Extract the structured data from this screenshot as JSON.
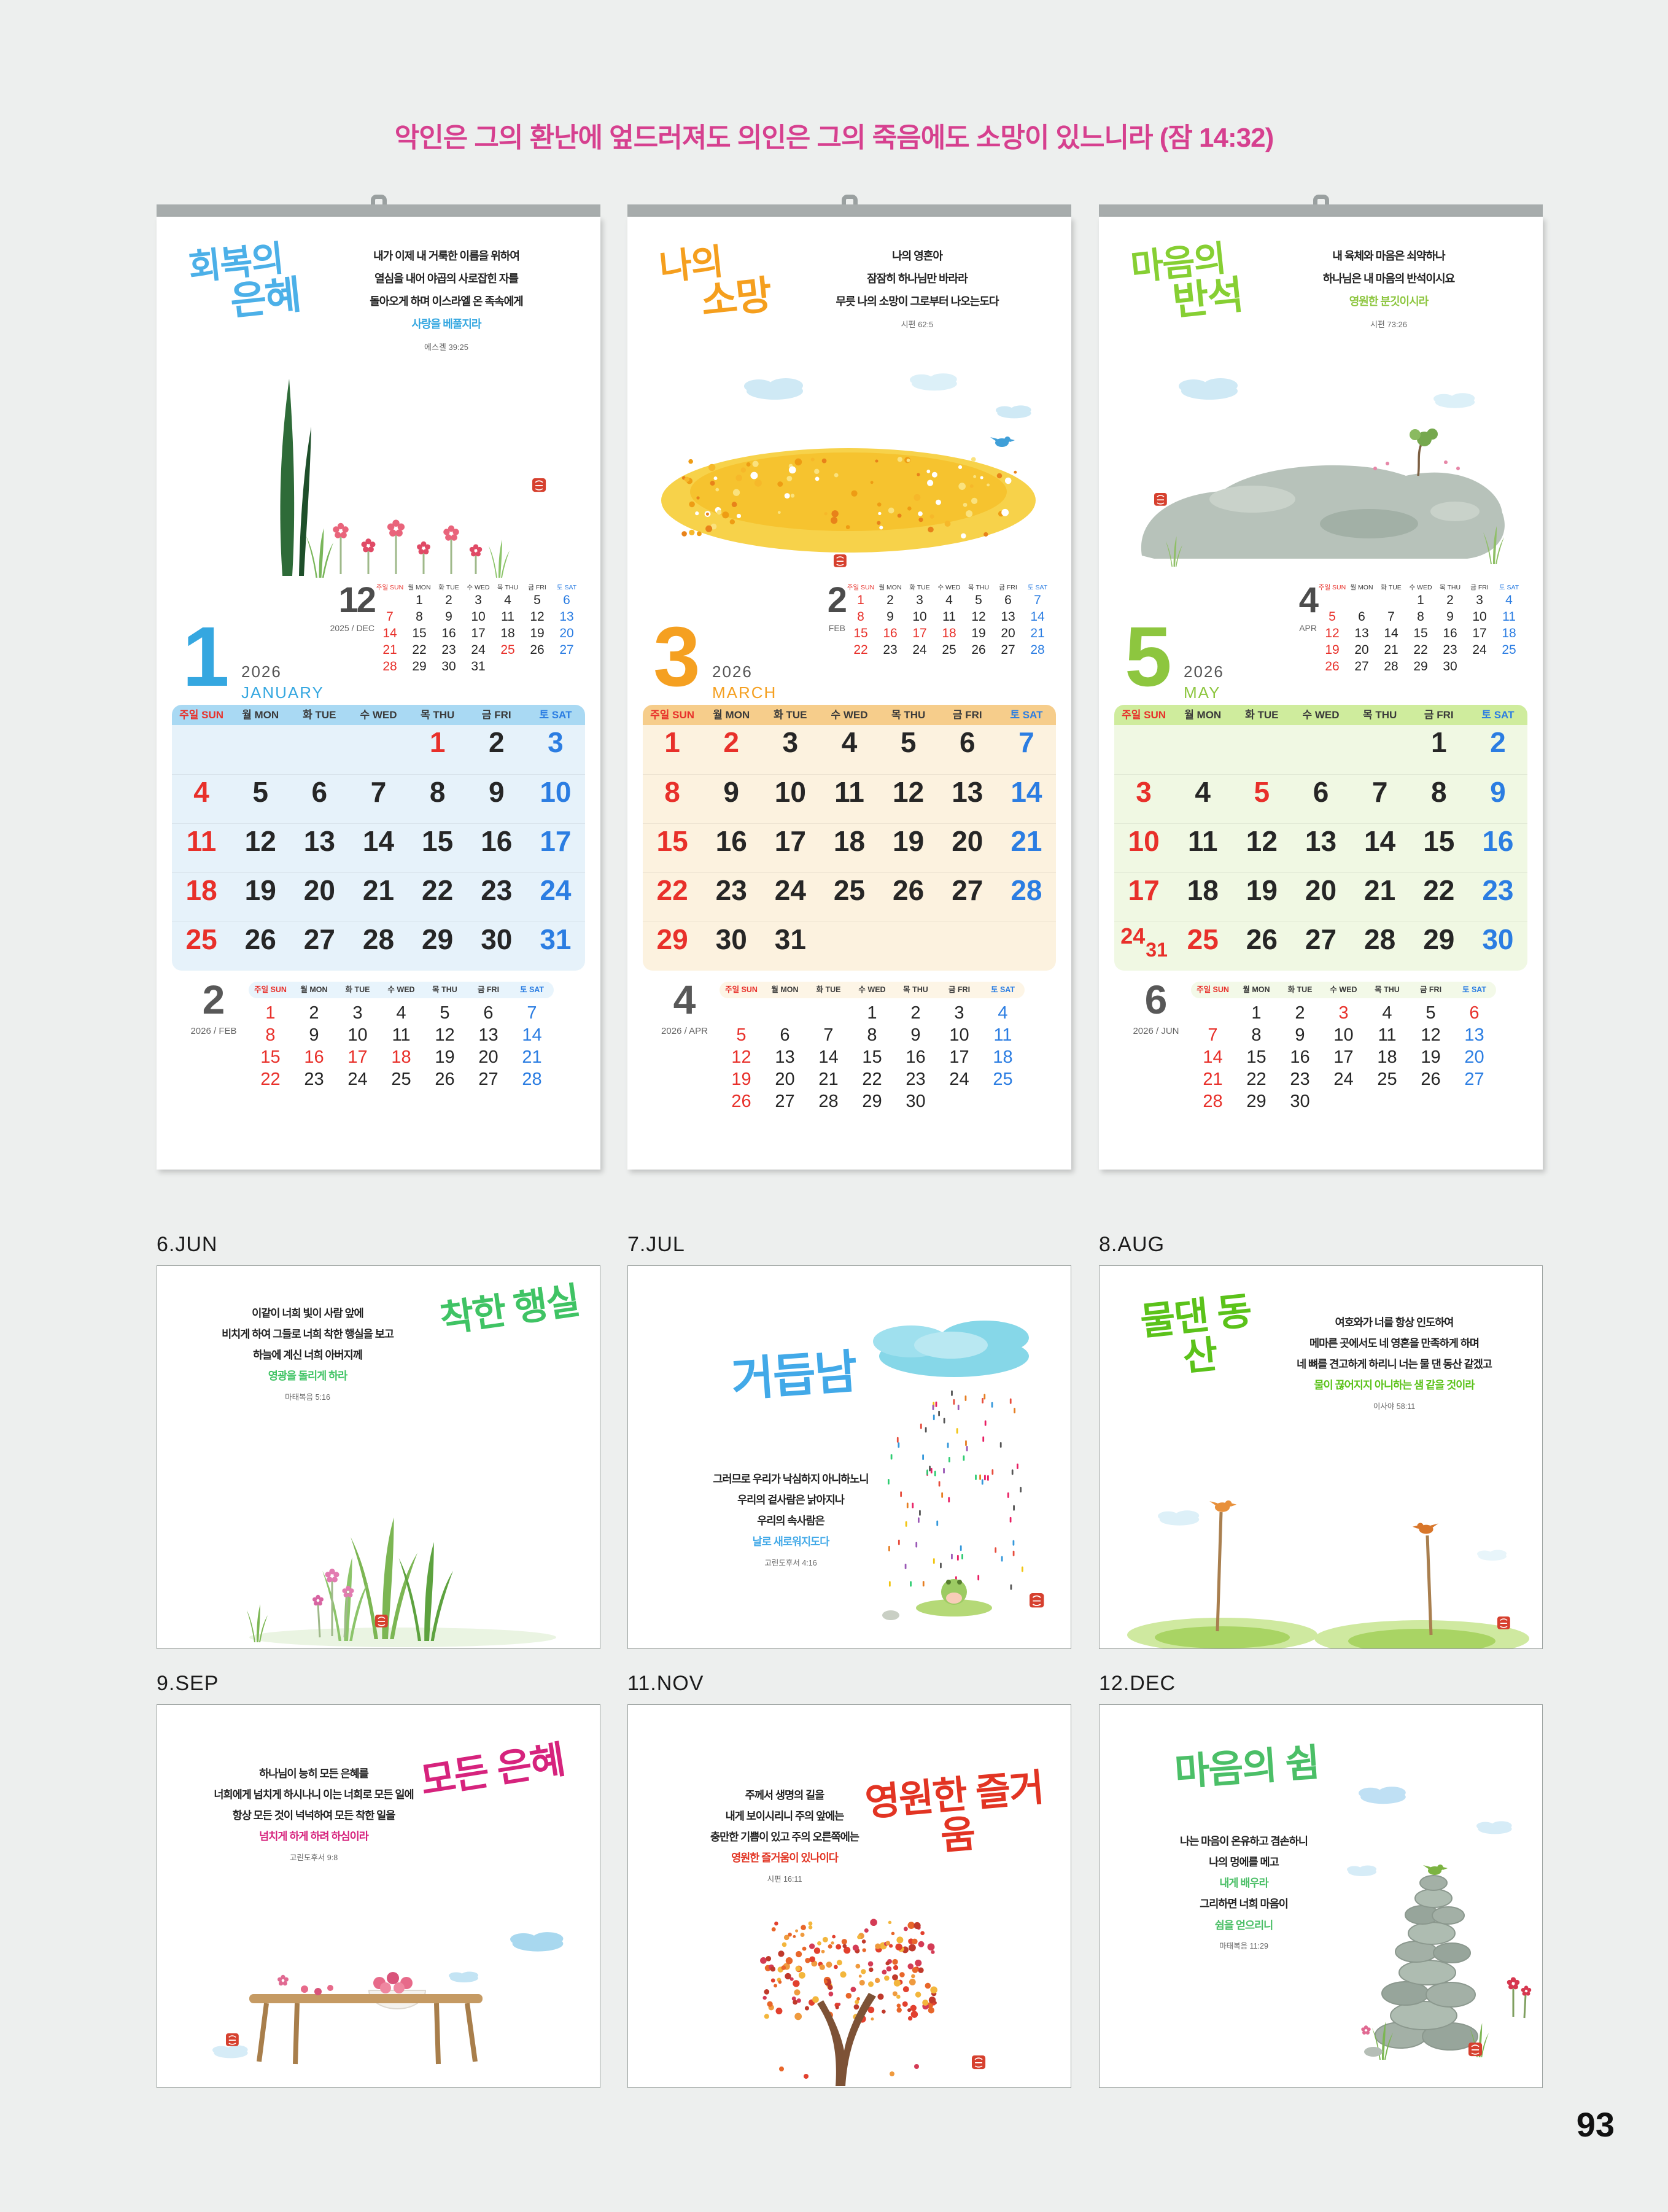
{
  "page": {
    "verse": "악인은 그의 환난에 엎드러져도 의인은 그의 죽음에도 소망이 있느니라 (잠 14:32)",
    "number": "93"
  },
  "colors": {
    "sunday_red": "#e8302a",
    "saturday_blue": "#2b7de2",
    "weekday_black": "#262626",
    "header_pink": "#d6408f"
  },
  "weekdays": [
    {
      "ko": "주일",
      "en": "SUN"
    },
    {
      "ko": "월",
      "en": "MON"
    },
    {
      "ko": "화",
      "en": "TUE"
    },
    {
      "ko": "수",
      "en": "WED"
    },
    {
      "ko": "목",
      "en": "THU"
    },
    {
      "ko": "금",
      "en": "FRI"
    },
    {
      "ko": "토",
      "en": "SAT"
    }
  ],
  "calendars": [
    {
      "name": "january",
      "theme": {
        "accent": "#35a7e0",
        "title": "#4cb0e8",
        "head-bg": "#a9d9f3",
        "grid-bg": "#e6f2fa",
        "mini-head-bg": "#e8f4fc"
      },
      "title": "회복의 은혜",
      "title_lines": [
        "회복의",
        "은혜"
      ],
      "verse_lines": [
        {
          "t": "내가 이제 내 거룩한 이름을 위하여",
          "c": "k"
        },
        {
          "t": "열심을 내어 야곱의 사로잡힌 자를",
          "c": "k"
        },
        {
          "t": "돌아오게 하며 이스라엘 온 족속에게",
          "c": "k"
        },
        {
          "t": "사랑을 베풀지라",
          "c": "a"
        }
      ],
      "verse_ref": "에스겔 39:25",
      "big_num": "1",
      "year": "2026",
      "month_name": "JANUARY",
      "mini_top": {
        "num": "12",
        "label": "2025 / DEC",
        "rows": [
          [
            "",
            "1k",
            "2k",
            "3k",
            "4k",
            "5k",
            "6b"
          ],
          [
            "7r",
            "8k",
            "9k",
            "10k",
            "11k",
            "12k",
            "13b"
          ],
          [
            "14r",
            "15k",
            "16k",
            "17k",
            "18k",
            "19k",
            "20b"
          ],
          [
            "21r",
            "22k",
            "23k",
            "24k",
            "25r",
            "26k",
            "27b"
          ],
          [
            "28r",
            "29k",
            "30k",
            "31k",
            "",
            "",
            ""
          ]
        ]
      },
      "main_rows": [
        [
          "",
          "",
          "",
          "",
          "1r",
          "2k",
          "3b"
        ],
        [
          "4r",
          "5k",
          "6k",
          "7k",
          "8k",
          "9k",
          "10b"
        ],
        [
          "11r",
          "12k",
          "13k",
          "14k",
          "15k",
          "16k",
          "17b"
        ],
        [
          "18r",
          "19k",
          "20k",
          "21k",
          "22k",
          "23k",
          "24b"
        ],
        [
          "25r",
          "26k",
          "27k",
          "28k",
          "29k",
          "30k",
          "31b"
        ]
      ],
      "mini_bottom": {
        "num": "2",
        "label": "2026 / FEB",
        "rows": [
          [
            "1r",
            "2k",
            "3k",
            "4k",
            "5k",
            "6k",
            "7b"
          ],
          [
            "8r",
            "9k",
            "10k",
            "11k",
            "12k",
            "13k",
            "14b"
          ],
          [
            "15r",
            "16r",
            "17r",
            "18r",
            "19k",
            "20k",
            "21b"
          ],
          [
            "22r",
            "23k",
            "24k",
            "25k",
            "26k",
            "27k",
            "28b"
          ]
        ]
      }
    },
    {
      "name": "march",
      "theme": {
        "accent": "#f5a021",
        "title": "#f59f1e",
        "head-bg": "#f6cd8b",
        "grid-bg": "#fcf2df",
        "mini-head-bg": "#fdf5e6"
      },
      "title": "나의 소망",
      "title_lines": [
        "나의",
        "소망"
      ],
      "verse_lines": [
        {
          "t": "나의 영혼아",
          "c": "k"
        },
        {
          "t": "잠잠히 하나님만 바라라",
          "c": "k"
        },
        {
          "t": "무릇 나의 소망이 그로부터 나오는도다",
          "c": "k"
        }
      ],
      "verse_ref": "시편 62:5",
      "big_num": "3",
      "year": "2026",
      "month_name": "MARCH",
      "mini_top": {
        "num": "2",
        "label": "FEB",
        "rows": [
          [
            "1r",
            "2k",
            "3k",
            "4k",
            "5k",
            "6k",
            "7b"
          ],
          [
            "8r",
            "9k",
            "10k",
            "11k",
            "12k",
            "13k",
            "14b"
          ],
          [
            "15r",
            "16r",
            "17r",
            "18r",
            "19k",
            "20k",
            "21b"
          ],
          [
            "22r",
            "23k",
            "24k",
            "25k",
            "26k",
            "27k",
            "28b"
          ]
        ]
      },
      "main_rows": [
        [
          "1r",
          "2r",
          "3k",
          "4k",
          "5k",
          "6k",
          "7b"
        ],
        [
          "8r",
          "9k",
          "10k",
          "11k",
          "12k",
          "13k",
          "14b"
        ],
        [
          "15r",
          "16k",
          "17k",
          "18k",
          "19k",
          "20k",
          "21b"
        ],
        [
          "22r",
          "23k",
          "24k",
          "25k",
          "26k",
          "27k",
          "28b"
        ],
        [
          "29r",
          "30k",
          "31k",
          "",
          "",
          "",
          ""
        ]
      ],
      "mini_bottom": {
        "num": "4",
        "label": "2026 / APR",
        "rows": [
          [
            "",
            "",
            "",
            "1k",
            "2k",
            "3k",
            "4b"
          ],
          [
            "5r",
            "6k",
            "7k",
            "8k",
            "9k",
            "10k",
            "11b"
          ],
          [
            "12r",
            "13k",
            "14k",
            "15k",
            "16k",
            "17k",
            "18b"
          ],
          [
            "19r",
            "20k",
            "21k",
            "22k",
            "23k",
            "24k",
            "25b"
          ],
          [
            "26r",
            "27k",
            "28k",
            "29k",
            "30k",
            "",
            ""
          ]
        ]
      }
    },
    {
      "name": "may",
      "theme": {
        "accent": "#8dc63f",
        "title": "#86cf33",
        "head-bg": "#cfec9d",
        "grid-bg": "#f0f8e3",
        "mini-head-bg": "#f3f9e8"
      },
      "title": "마음의 반석",
      "title_lines": [
        "마음의",
        "반석"
      ],
      "verse_lines": [
        {
          "t": "내 육체와 마음은 쇠약하나",
          "c": "k"
        },
        {
          "t": "하나님은 내 마음의 반석이시요",
          "c": "k"
        },
        {
          "t": "영원한 분깃이시라",
          "c": "a"
        }
      ],
      "verse_ref": "시편 73:26",
      "big_num": "5",
      "year": "2026",
      "month_name": "MAY",
      "mini_top": {
        "num": "4",
        "label": "APR",
        "rows": [
          [
            "",
            "",
            "",
            "1k",
            "2k",
            "3k",
            "4b"
          ],
          [
            "5r",
            "6k",
            "7k",
            "8k",
            "9k",
            "10k",
            "11b"
          ],
          [
            "12r",
            "13k",
            "14k",
            "15k",
            "16k",
            "17k",
            "18b"
          ],
          [
            "19r",
            "20k",
            "21k",
            "22k",
            "23k",
            "24k",
            "25b"
          ],
          [
            "26r",
            "27k",
            "28k",
            "29k",
            "30k",
            "",
            ""
          ]
        ]
      },
      "main_rows": [
        [
          "",
          "",
          "",
          "",
          "",
          "1k",
          "2b"
        ],
        [
          "3r",
          "4k",
          "5r",
          "6k",
          "7k",
          "8k",
          "9b"
        ],
        [
          "10r",
          "11k",
          "12k",
          "13k",
          "14k",
          "15k",
          "16b"
        ],
        [
          "17r",
          "18k",
          "19k",
          "20k",
          "21k",
          "22k",
          "23b"
        ],
        [
          "24|31r",
          "25r",
          "26k",
          "27k",
          "28k",
          "29k",
          "30b"
        ]
      ],
      "mini_bottom": {
        "num": "6",
        "label": "2026 / JUN",
        "rows": [
          [
            "",
            "1k",
            "2k",
            "3r",
            "4k",
            "5k",
            "6r"
          ],
          [
            "7r",
            "8k",
            "9k",
            "10k",
            "11k",
            "12k",
            "13b"
          ],
          [
            "14r",
            "15k",
            "16k",
            "17k",
            "18k",
            "19k",
            "20b"
          ],
          [
            "21r",
            "22k",
            "23k",
            "24k",
            "25k",
            "26k",
            "27b"
          ],
          [
            "28r",
            "29k",
            "30k",
            "",
            "",
            "",
            ""
          ]
        ]
      }
    }
  ],
  "artworks": [
    {
      "label": "6.JUN",
      "title": "착한 행실",
      "theme": {
        "accent": "#3fc364"
      },
      "verse_lines": [
        {
          "t": "이같이 너희 빛이 사람 앞에",
          "c": "k"
        },
        {
          "t": "비치게 하여 그들로 너희 착한 행실을 보고",
          "c": "k"
        },
        {
          "t": "하늘에 계신 너희 아버지께",
          "c": "k"
        },
        {
          "t": "영광을 돌리게 하라",
          "c": "a"
        }
      ],
      "ref": "마태복음 5:16"
    },
    {
      "label": "7.JUL",
      "title": "거듭남",
      "theme": {
        "accent": "#42a9e8"
      },
      "verse_lines": [
        {
          "t": "그러므로 우리가 낙심하지 아니하노니",
          "c": "k"
        },
        {
          "t": "우리의 겉사람은 낡아지나",
          "c": "k"
        },
        {
          "t": "우리의 속사람은",
          "c": "k"
        },
        {
          "t": "날로 새로워지도다",
          "c": "a"
        }
      ],
      "ref": "고린도후서 4:16"
    },
    {
      "label": "8.AUG",
      "title": "물댄 동산",
      "theme": {
        "accent": "#5bc21a"
      },
      "verse_lines": [
        {
          "t": "여호와가 너를 항상 인도하여",
          "c": "k"
        },
        {
          "t": "메마른 곳에서도 네 영혼을 만족하게 하며",
          "c": "k"
        },
        {
          "t": "네 뼈를 견고하게 하리니 너는 물 댄 동산 같겠고",
          "c": "k"
        },
        {
          "t": "물이 끊어지지 아니하는 샘 같을 것이라",
          "c": "a"
        }
      ],
      "ref": "이사야 58:11"
    },
    {
      "label": "9.SEP",
      "title": "모든 은혜",
      "theme": {
        "accent": "#d6237d"
      },
      "verse_lines": [
        {
          "t": "하나님이 능히 모든 은혜를",
          "c": "k"
        },
        {
          "t": "너희에게 넘치게 하시나니 이는 너희로 모든 일에",
          "c": "k"
        },
        {
          "t": "항상 모든 것이 넉넉하여 모든 착한 일을",
          "c": "k"
        },
        {
          "t": "넘치게 하게 하려 하심이라",
          "c": "a"
        }
      ],
      "ref": "고린도후서 9:8"
    },
    {
      "label": "11.NOV",
      "title": "영원한 즐거움",
      "theme": {
        "accent": "#e23423"
      },
      "verse_lines": [
        {
          "t": "주께서 생명의 길을",
          "c": "k"
        },
        {
          "t": "내게 보이시리니 주의 앞에는",
          "c": "k"
        },
        {
          "t": "충만한 기쁨이 있고 주의 오른쪽에는",
          "c": "k"
        },
        {
          "t": "영원한 즐거움이 있나이다",
          "c": "a"
        }
      ],
      "ref": "시편 16:11"
    },
    {
      "label": "12.DEC",
      "title": "마음의 쉼",
      "theme": {
        "accent": "#4bbf67"
      },
      "verse_lines": [
        {
          "t": "나는 마음이 온유하고 겸손하니",
          "c": "k"
        },
        {
          "t": "나의 멍에를 메고",
          "c": "k"
        },
        {
          "t": "내게 배우라",
          "c": "a"
        },
        {
          "t": "그리하면 너희 마음이",
          "c": "k"
        },
        {
          "t": "쉼을 얻으리니",
          "c": "a"
        }
      ],
      "ref": "마태복음 11:29"
    }
  ]
}
